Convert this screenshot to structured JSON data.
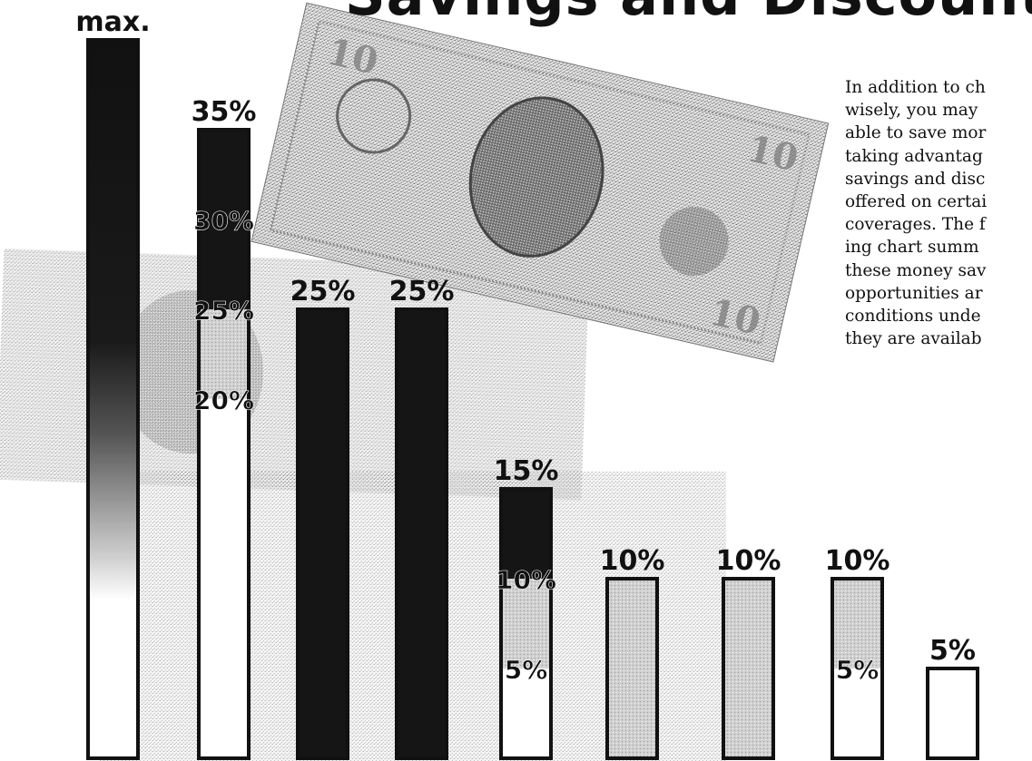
{
  "title": "Savings and Discounts",
  "intro_text": "In addition to ch\nwisely, you may\nable to save mor\ntaking advantag\nsavings and disc\noffered on certai\ncoverages. The f\ning chart summ\nthese money sav\nopportunities ar\nconditions unde\nthey are availab",
  "colors": {
    "background": "#ffffff",
    "bill_light": "#d6d6d6",
    "bill_mid": "#a4a4a4",
    "bar_dark": "#151515",
    "bar_outline": "#111111",
    "bar_light_fill": "#cfcfcf",
    "bar_white": "#ffffff",
    "label": "#111111"
  },
  "icons": [
    "ten-dollar-bill-back-icon",
    "ten-dollar-bill-front-icon",
    "dollar-bill-texture-icon"
  ],
  "chart_data": {
    "type": "bar",
    "title": "",
    "xlabel": "",
    "ylabel": "",
    "categories": [
      "",
      "",
      "",
      "",
      "",
      "",
      "",
      "",
      ""
    ],
    "ylim": [
      0,
      40
    ],
    "bars": [
      {
        "top_label": "max.",
        "value": 40,
        "fill": "gradient",
        "segments": []
      },
      {
        "top_label": "35%",
        "value": 35,
        "fill": "stacked",
        "segments": [
          {
            "from": 25,
            "to": 35,
            "fill": "dark"
          },
          {
            "from": 20,
            "to": 25,
            "fill": "light"
          },
          {
            "from": 0,
            "to": 20,
            "fill": "white"
          }
        ],
        "inner_labels": [
          {
            "text": "30%",
            "value": 30
          },
          {
            "text": "25%",
            "value": 25
          },
          {
            "text": "20%",
            "value": 20
          }
        ]
      },
      {
        "top_label": "25%",
        "value": 25,
        "fill": "dark",
        "segments": []
      },
      {
        "top_label": "25%",
        "value": 25,
        "fill": "dark",
        "segments": []
      },
      {
        "top_label": "15%",
        "value": 15,
        "fill": "stacked",
        "segments": [
          {
            "from": 10,
            "to": 15,
            "fill": "dark"
          },
          {
            "from": 5,
            "to": 10,
            "fill": "light"
          },
          {
            "from": 0,
            "to": 5,
            "fill": "white"
          }
        ],
        "inner_labels": [
          {
            "text": "10%",
            "value": 10
          },
          {
            "text": "5%",
            "value": 5
          }
        ]
      },
      {
        "top_label": "10%",
        "value": 10,
        "fill": "light",
        "segments": []
      },
      {
        "top_label": "10%",
        "value": 10,
        "fill": "light",
        "segments": []
      },
      {
        "top_label": "10%",
        "value": 10,
        "fill": "stacked",
        "segments": [
          {
            "from": 5,
            "to": 10,
            "fill": "light"
          },
          {
            "from": 0,
            "to": 5,
            "fill": "white"
          }
        ],
        "inner_labels": [
          {
            "text": "5%",
            "value": 5
          }
        ]
      },
      {
        "top_label": "5%",
        "value": 5,
        "fill": "white",
        "segments": []
      }
    ]
  }
}
